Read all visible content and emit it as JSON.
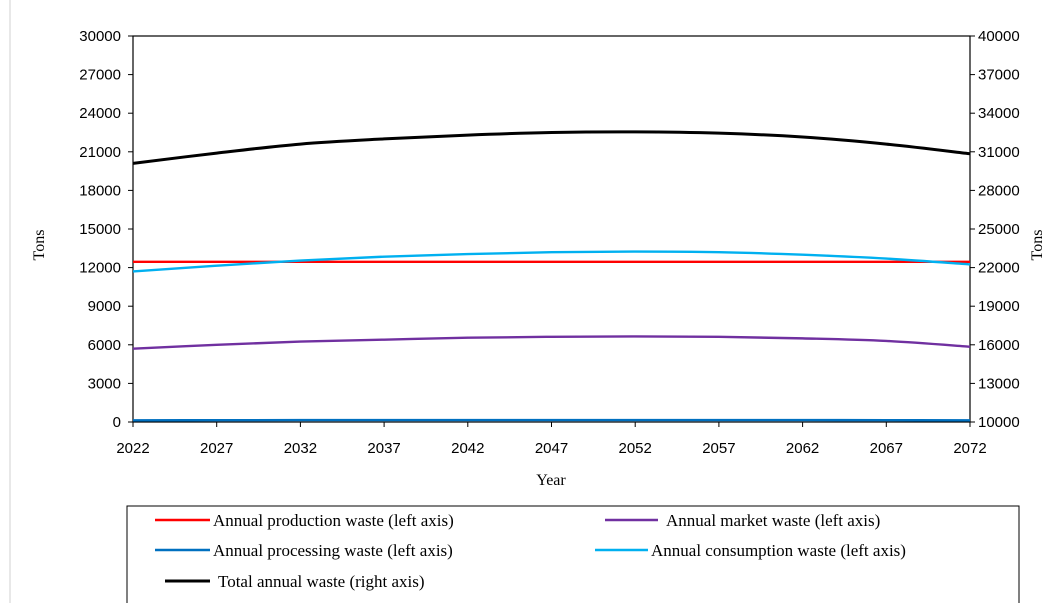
{
  "chart_data": {
    "type": "line",
    "xlabel": "Year",
    "ylabel": "Tons",
    "y2label": "Tons",
    "x_ticks": [
      "2022",
      "2027",
      "2032",
      "2037",
      "2042",
      "2047",
      "2052",
      "2057",
      "2062",
      "2067",
      "2072"
    ],
    "ylim": [
      0,
      30000
    ],
    "y2lim": [
      10000,
      40000
    ],
    "y_ticks": [
      "0",
      "3000",
      "6000",
      "9000",
      "12000",
      "15000",
      "18000",
      "21000",
      "24000",
      "27000",
      "30000"
    ],
    "y2_ticks": [
      "10000",
      "13000",
      "16000",
      "19000",
      "22000",
      "25000",
      "28000",
      "31000",
      "34000",
      "37000",
      "40000"
    ],
    "grid": false,
    "legend_position": "bottom",
    "x": [
      2022,
      2027,
      2032,
      2037,
      2042,
      2047,
      2052,
      2057,
      2062,
      2067,
      2072
    ],
    "series": [
      {
        "name": "Annual production waste (left axis)",
        "axis": "left",
        "color": "#ff0000",
        "values": [
          12450,
          12450,
          12450,
          12450,
          12450,
          12450,
          12450,
          12450,
          12450,
          12450,
          12450
        ]
      },
      {
        "name": "Annual market waste (left axis)",
        "axis": "left",
        "color": "#7030a0",
        "values": [
          5700,
          6000,
          6250,
          6400,
          6550,
          6620,
          6650,
          6620,
          6500,
          6300,
          5850
        ]
      },
      {
        "name": "Annual processing waste (left axis)",
        "axis": "left",
        "color": "#0070c0",
        "values": [
          130,
          140,
          150,
          150,
          150,
          150,
          150,
          150,
          150,
          140,
          130
        ]
      },
      {
        "name": "Annual consumption waste (left axis)",
        "axis": "left",
        "color": "#00b0f0",
        "values": [
          11700,
          12150,
          12550,
          12850,
          13050,
          13200,
          13250,
          13200,
          13000,
          12700,
          12250
        ]
      },
      {
        "name": "Total annual waste (right axis)",
        "axis": "right",
        "color": "#000000",
        "values": [
          30100,
          30900,
          31600,
          32000,
          32300,
          32500,
          32550,
          32450,
          32150,
          31600,
          30850
        ]
      }
    ]
  }
}
